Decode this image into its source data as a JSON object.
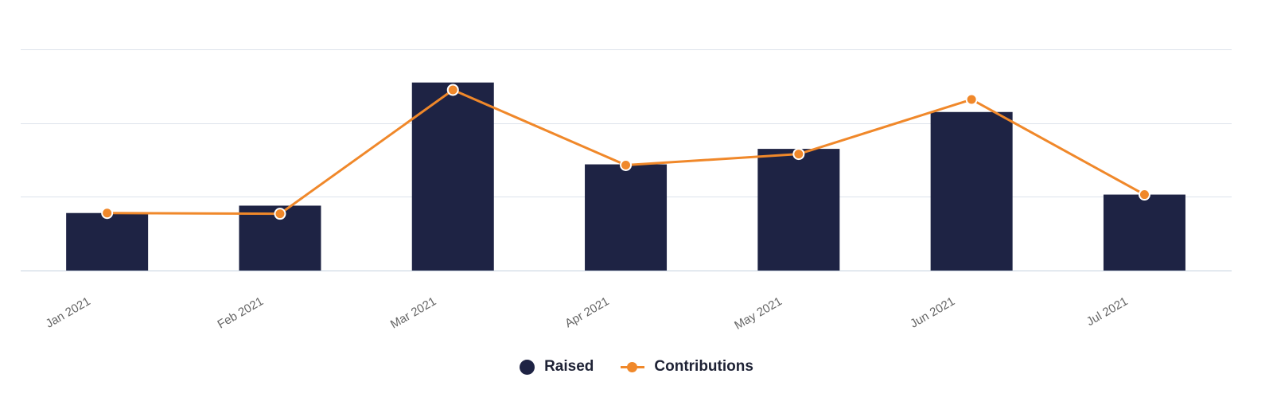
{
  "colors": {
    "bar": "#1e2344",
    "line": "#f0882a",
    "grid": "#dde3ec",
    "axis": "#c5d1de",
    "tick_text": "#666666"
  },
  "legend": {
    "raised_label": "Raised",
    "contributions_label": "Contributions"
  },
  "chart_data": {
    "type": "bar",
    "categories": [
      "Jan 2021",
      "Feb 2021",
      "Mar 2021",
      "Apr 2021",
      "May 2021",
      "Jun 2021",
      "Jul 2021"
    ],
    "series": [
      {
        "name": "Raised",
        "type": "bar",
        "values": [
          0.78,
          0.88,
          2.55,
          1.44,
          1.65,
          2.15,
          1.03
        ]
      },
      {
        "name": "Contributions",
        "type": "line",
        "values": [
          0.78,
          0.77,
          2.45,
          1.43,
          1.58,
          2.32,
          1.03
        ]
      }
    ],
    "ylim": [
      0,
      3
    ],
    "y_ticks_visible": false,
    "grid": true,
    "legend_position": "bottom-center",
    "title": "",
    "xlabel": "",
    "ylabel": ""
  }
}
